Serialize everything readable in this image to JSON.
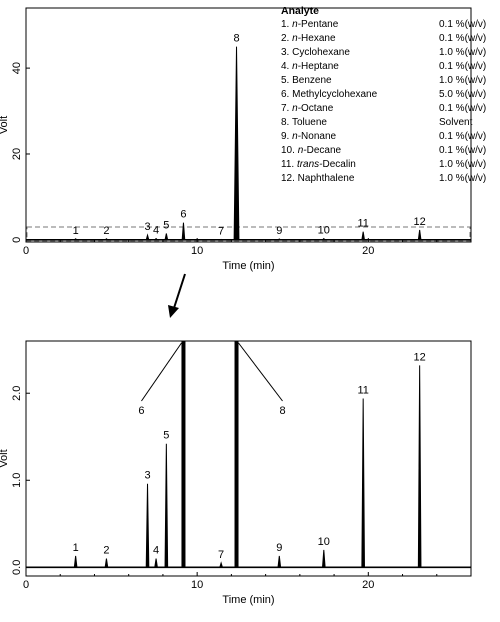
{
  "chart_data": [
    {
      "type": "line",
      "panel": "full",
      "xlabel": "Time (min)",
      "ylabel": "Volt",
      "xlim": [
        0,
        26
      ],
      "ylim": [
        -0.5,
        54
      ],
      "xticks": [
        0,
        10,
        20
      ],
      "yticks": [
        0,
        20,
        40
      ],
      "peaks": [
        {
          "label": "1",
          "t": 2.9,
          "h": 0.25
        },
        {
          "label": "2",
          "t": 4.7,
          "h": 0.25
        },
        {
          "label": "3",
          "t": 7.1,
          "h": 1.1
        },
        {
          "label": "4",
          "t": 7.6,
          "h": 0.3
        },
        {
          "label": "5",
          "t": 8.2,
          "h": 1.5
        },
        {
          "label": "6",
          "t": 9.2,
          "h": 4.0
        },
        {
          "label": "7",
          "t": 11.4,
          "h": 0.1
        },
        {
          "label": "8",
          "t": 12.3,
          "h": 45.0
        },
        {
          "label": "9",
          "t": 14.8,
          "h": 0.2
        },
        {
          "label": "10",
          "t": 17.4,
          "h": 0.3
        },
        {
          "label": "11",
          "t": 19.7,
          "h": 1.9
        },
        {
          "label": "12",
          "t": 23.0,
          "h": 2.3
        }
      ],
      "zoom_box": {
        "t": [
          0,
          26
        ],
        "v": [
          -0.3,
          3.0
        ]
      }
    },
    {
      "type": "line",
      "panel": "zoom",
      "xlabel": "Time (min)",
      "ylabel": "Volt",
      "xlim": [
        0,
        26
      ],
      "ylim": [
        -0.1,
        2.6
      ],
      "xticks": [
        0,
        10,
        20
      ],
      "yticks": [
        0.0,
        1.0,
        2.0
      ],
      "peaks": [
        {
          "label": "1",
          "t": 2.9,
          "h": 0.13
        },
        {
          "label": "2",
          "t": 4.7,
          "h": 0.1
        },
        {
          "label": "3",
          "t": 7.1,
          "h": 0.96
        },
        {
          "label": "4",
          "t": 7.6,
          "h": 0.1
        },
        {
          "label": "5",
          "t": 8.2,
          "h": 1.42
        },
        {
          "label": "6",
          "t": 9.2,
          "h": 2.6
        },
        {
          "label": "7",
          "t": 11.4,
          "h": 0.05
        },
        {
          "label": "8",
          "t": 12.3,
          "h": 2.6
        },
        {
          "label": "9",
          "t": 14.8,
          "h": 0.13
        },
        {
          "label": "10",
          "t": 17.4,
          "h": 0.2
        },
        {
          "label": "11",
          "t": 19.7,
          "h": 1.94
        },
        {
          "label": "12",
          "t": 23.0,
          "h": 2.32
        }
      ],
      "offscale_labels": [
        {
          "label": "6",
          "t": 9.2
        },
        {
          "label": "8",
          "t": 12.3
        }
      ]
    }
  ],
  "legend": {
    "title": "Analyte",
    "rows": [
      {
        "name": "1. n-Pentane",
        "conc": "0.1 %(w/v)"
      },
      {
        "name": "2. n-Hexane",
        "conc": "0.1 %(w/v)"
      },
      {
        "name": "3. Cyclohexane",
        "conc": "1.0 %(w/v)"
      },
      {
        "name": "4. n-Heptane",
        "conc": "0.1 %(w/v)"
      },
      {
        "name": "5. Benzene",
        "conc": "1.0 %(w/v)"
      },
      {
        "name": "6. Methylcyclohexane",
        "conc": "5.0 %(w/v)"
      },
      {
        "name": "7. n-Octane",
        "conc": "0.1 %(w/v)"
      },
      {
        "name": "8. Toluene",
        "conc": "Solvent"
      },
      {
        "name": "9. n-Nonane",
        "conc": "0.1 %(w/v)"
      },
      {
        "name": "10. n-Decane",
        "conc": "0.1 %(w/v)"
      },
      {
        "name": "11. trans-Decalin",
        "conc": "1.0 %(w/v)"
      },
      {
        "name": "12. Naphthalene",
        "conc": "1.0 %(w/v)"
      }
    ]
  }
}
